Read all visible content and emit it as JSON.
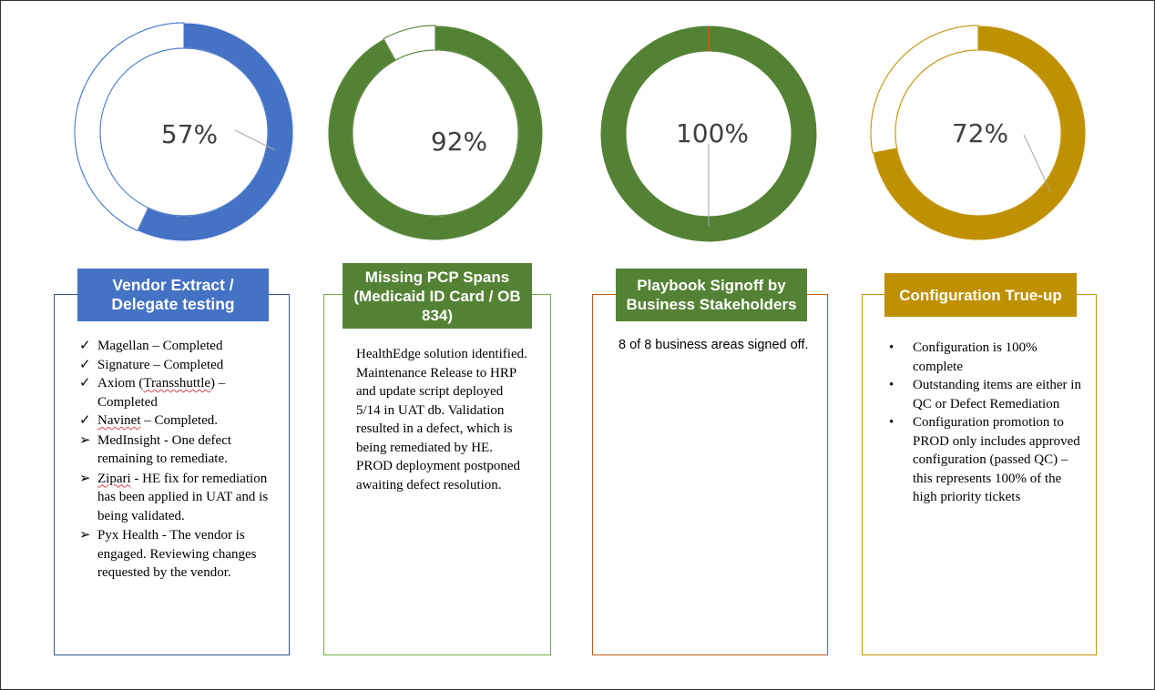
{
  "colors": {
    "blue": "#4472c4",
    "green": "#548235",
    "gold": "#bf9000",
    "panel1_border": "#2f5597",
    "panel2_border": "#70ad47",
    "panel3_border": "#c55a11",
    "panel4_border": "#bf9000"
  },
  "chart_data": [
    {
      "type": "pie",
      "label": "57%",
      "values": [
        57,
        43
      ],
      "series_colors": [
        "#4472c4",
        "#ffffff"
      ]
    },
    {
      "type": "pie",
      "label": "92%",
      "values": [
        92,
        8
      ],
      "series_colors": [
        "#548235",
        "#ffffff"
      ]
    },
    {
      "type": "pie",
      "label": "100%",
      "values": [
        100,
        0
      ],
      "series_colors": [
        "#548235",
        "#ffffff"
      ]
    },
    {
      "type": "pie",
      "label": "72%",
      "values": [
        72,
        28
      ],
      "series_colors": [
        "#bf9000",
        "#ffffff"
      ]
    }
  ],
  "panels": [
    {
      "title": "Vendor Extract / Delegate testing",
      "items": [
        {
          "mark": "✓",
          "text": "Magellan – Completed"
        },
        {
          "mark": "✓",
          "text": "Signature – Completed"
        },
        {
          "mark": "✓",
          "text": "Axiom (Transshuttle) – Completed"
        },
        {
          "mark": "✓",
          "text": "Navinet – Completed."
        },
        {
          "mark": "➢",
          "text": "MedInsight - One defect remaining to remediate."
        },
        {
          "mark": "➢",
          "text": "Zipari - HE fix for remediation has been applied in UAT and is being validated."
        },
        {
          "mark": "➢",
          "text": "Pyx Health - The vendor is engaged. Reviewing changes requested by the vendor."
        }
      ]
    },
    {
      "title": "Missing PCP Spans (Medicaid ID Card / OB 834)",
      "body": "HealthEdge solution identified. Maintenance Release to HRP and update script deployed 5/14 in UAT db. Validation resulted in a defect, which is being remediated by HE. PROD deployment postponed awaiting defect resolution."
    },
    {
      "title": "Playbook Signoff by Business Stakeholders",
      "body": "8 of 8 business areas signed off."
    },
    {
      "title": "Configuration True-up",
      "items": [
        "Configuration is 100% complete",
        "Outstanding items are either in QC or Defect Remediation",
        "Configuration promotion to PROD only includes approved configuration (passed QC) – this represents 100% of  the high priority tickets"
      ]
    }
  ]
}
